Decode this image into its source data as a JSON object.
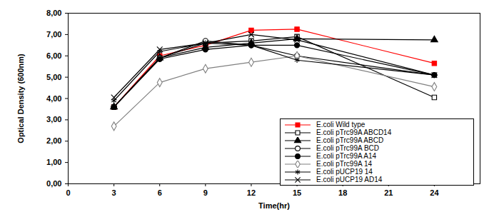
{
  "chart_data": {
    "type": "line",
    "x_label": "Time(hr)",
    "y_label": "Optical Density (600nm)",
    "x": [
      3,
      6,
      9,
      12,
      15,
      24
    ],
    "xlim": [
      0,
      27
    ],
    "xticks": [
      0,
      3,
      6,
      9,
      12,
      15,
      18,
      21,
      24
    ],
    "ylim": [
      0,
      8
    ],
    "yticks": [
      {
        "value": 0,
        "label": "0,00"
      },
      {
        "value": 1,
        "label": "1,00"
      },
      {
        "value": 2,
        "label": "2,00"
      },
      {
        "value": 3,
        "label": "3,00"
      },
      {
        "value": 4,
        "label": "4,00"
      },
      {
        "value": 5,
        "label": "5,00"
      },
      {
        "value": 6,
        "label": "6,00"
      },
      {
        "value": 7,
        "label": "7,00"
      },
      {
        "value": 8,
        "label": "8,00"
      }
    ],
    "grid": false,
    "legend": "lower right",
    "series": [
      {
        "name": "E.coli Wild type",
        "color": "#ff0000",
        "marker": "square",
        "values": [
          3.6,
          6.0,
          6.5,
          7.2,
          7.25,
          5.65
        ]
      },
      {
        "name": "E.coli  pTrc99A ABCD14",
        "color": "#000000",
        "marker": "open_square",
        "values": [
          3.6,
          5.9,
          6.6,
          6.7,
          6.9,
          4.05
        ]
      },
      {
        "name": "E.coli  pTrc99A ABCD",
        "color": "#000000",
        "marker": "triangle",
        "values": [
          3.6,
          5.9,
          6.4,
          6.6,
          6.8,
          6.75
        ]
      },
      {
        "name": "E.coli  pTrc99A BCD",
        "color": "#000000",
        "marker": "open_circle",
        "values": [
          3.6,
          5.9,
          6.7,
          6.5,
          6.0,
          5.1
        ]
      },
      {
        "name": "E.coli  pTrc99A A14",
        "color": "#000000",
        "marker": "circle",
        "values": [
          3.6,
          5.85,
          6.3,
          6.5,
          6.5,
          5.1
        ]
      },
      {
        "name": "E.coli  pTrc99A 14",
        "color": "#808080",
        "marker": "open_diamond",
        "values": [
          2.7,
          4.75,
          5.4,
          5.7,
          6.0,
          4.55
        ]
      },
      {
        "name": "E.coli  pUCP19 14",
        "color": "#000000",
        "marker": "asterisk",
        "values": [
          3.9,
          6.2,
          6.6,
          6.5,
          5.8,
          5.1
        ]
      },
      {
        "name": "E.coli  pUCP19 AD14",
        "color": "#000000",
        "marker": "cross",
        "values": [
          4.05,
          6.3,
          6.6,
          7.0,
          6.75,
          5.1
        ]
      }
    ]
  }
}
